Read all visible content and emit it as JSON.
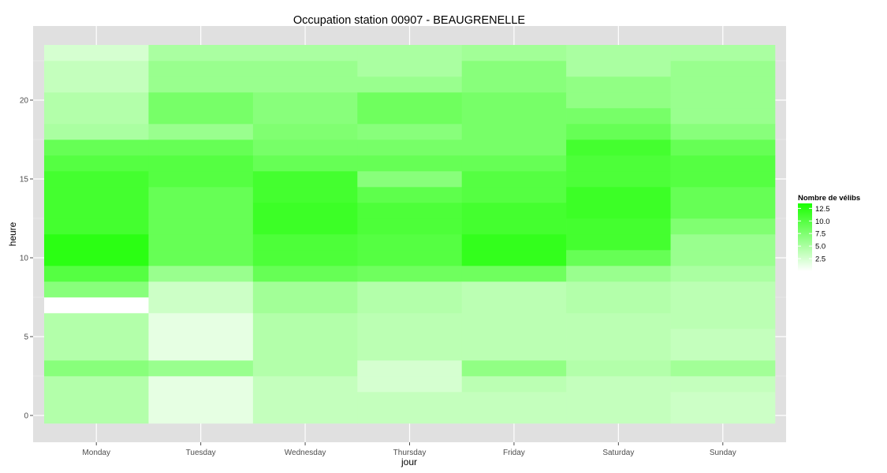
{
  "chart_data": {
    "type": "heatmap",
    "title": "Occupation station 00907 - BEAUGRENELLE",
    "xlabel": "jour",
    "ylabel": "heure",
    "x_categories": [
      "Monday",
      "Tuesday",
      "Wednesday",
      "Thursday",
      "Friday",
      "Saturday",
      "Sunday"
    ],
    "y_hours": [
      0,
      1,
      2,
      3,
      4,
      5,
      6,
      7,
      8,
      9,
      10,
      11,
      12,
      13,
      14,
      15,
      16,
      17,
      18,
      19,
      20,
      21,
      22,
      23
    ],
    "y_ticks": [
      0,
      5,
      10,
      15,
      20
    ],
    "ylim": [
      -0.5,
      23.5
    ],
    "grid": true,
    "legend": {
      "title": "Nombre de vélibs",
      "ticks": [
        2.5,
        5.0,
        7.5,
        10.0,
        12.5
      ],
      "tick_labels": [
        "2.5",
        "5.0",
        "7.5",
        "10.0",
        "12.5"
      ],
      "min": 0,
      "max": 13.5,
      "low_color": "#ffffff",
      "high_color": "#1aff00",
      "position": "right"
    },
    "values": [
      [
        4.5,
        4.5,
        4.5,
        7.0,
        4.5,
        4.5,
        4.5,
        0.0,
        7.0,
        10.0,
        12.5,
        12.5,
        11.0,
        11.0,
        11.0,
        11.0,
        10.0,
        9.0,
        5.0,
        4.5,
        4.5,
        3.5,
        3.5,
        2.5
      ],
      [
        1.5,
        1.5,
        1.5,
        6.0,
        1.5,
        1.5,
        1.5,
        3.0,
        3.0,
        6.0,
        9.0,
        9.0,
        9.0,
        9.0,
        9.0,
        10.0,
        10.0,
        9.0,
        6.0,
        8.0,
        8.0,
        6.0,
        6.0,
        5.0
      ],
      [
        3.5,
        3.5,
        3.5,
        4.5,
        4.5,
        4.5,
        4.5,
        5.5,
        5.5,
        9.0,
        10.5,
        10.5,
        11.5,
        11.5,
        11.0,
        11.0,
        9.0,
        8.0,
        7.5,
        7.0,
        7.0,
        6.0,
        6.0,
        5.0
      ],
      [
        3.5,
        3.5,
        2.5,
        2.5,
        4.0,
        4.0,
        4.0,
        4.5,
        4.5,
        8.5,
        10.0,
        10.0,
        10.5,
        10.5,
        9.5,
        7.0,
        9.0,
        8.0,
        7.0,
        8.5,
        8.5,
        6.0,
        5.0,
        5.0
      ],
      [
        3.5,
        3.5,
        4.0,
        6.5,
        4.0,
        4.0,
        4.0,
        4.0,
        4.0,
        8.5,
        12.0,
        12.0,
        11.0,
        11.0,
        10.0,
        10.0,
        9.0,
        8.0,
        8.0,
        8.0,
        8.0,
        7.0,
        7.0,
        5.5
      ],
      [
        3.5,
        3.5,
        3.5,
        4.5,
        4.0,
        4.0,
        4.0,
        4.5,
        4.5,
        6.0,
        9.0,
        11.0,
        11.0,
        11.5,
        11.5,
        10.5,
        10.5,
        11.0,
        9.0,
        8.0,
        6.5,
        6.5,
        5.0,
        5.0
      ],
      [
        3.0,
        3.0,
        3.5,
        5.5,
        3.5,
        3.5,
        4.0,
        4.0,
        4.0,
        5.0,
        6.0,
        6.0,
        7.5,
        9.0,
        9.0,
        10.0,
        10.0,
        9.0,
        7.0,
        6.0,
        6.0,
        6.0,
        6.0,
        5.0
      ]
    ]
  }
}
